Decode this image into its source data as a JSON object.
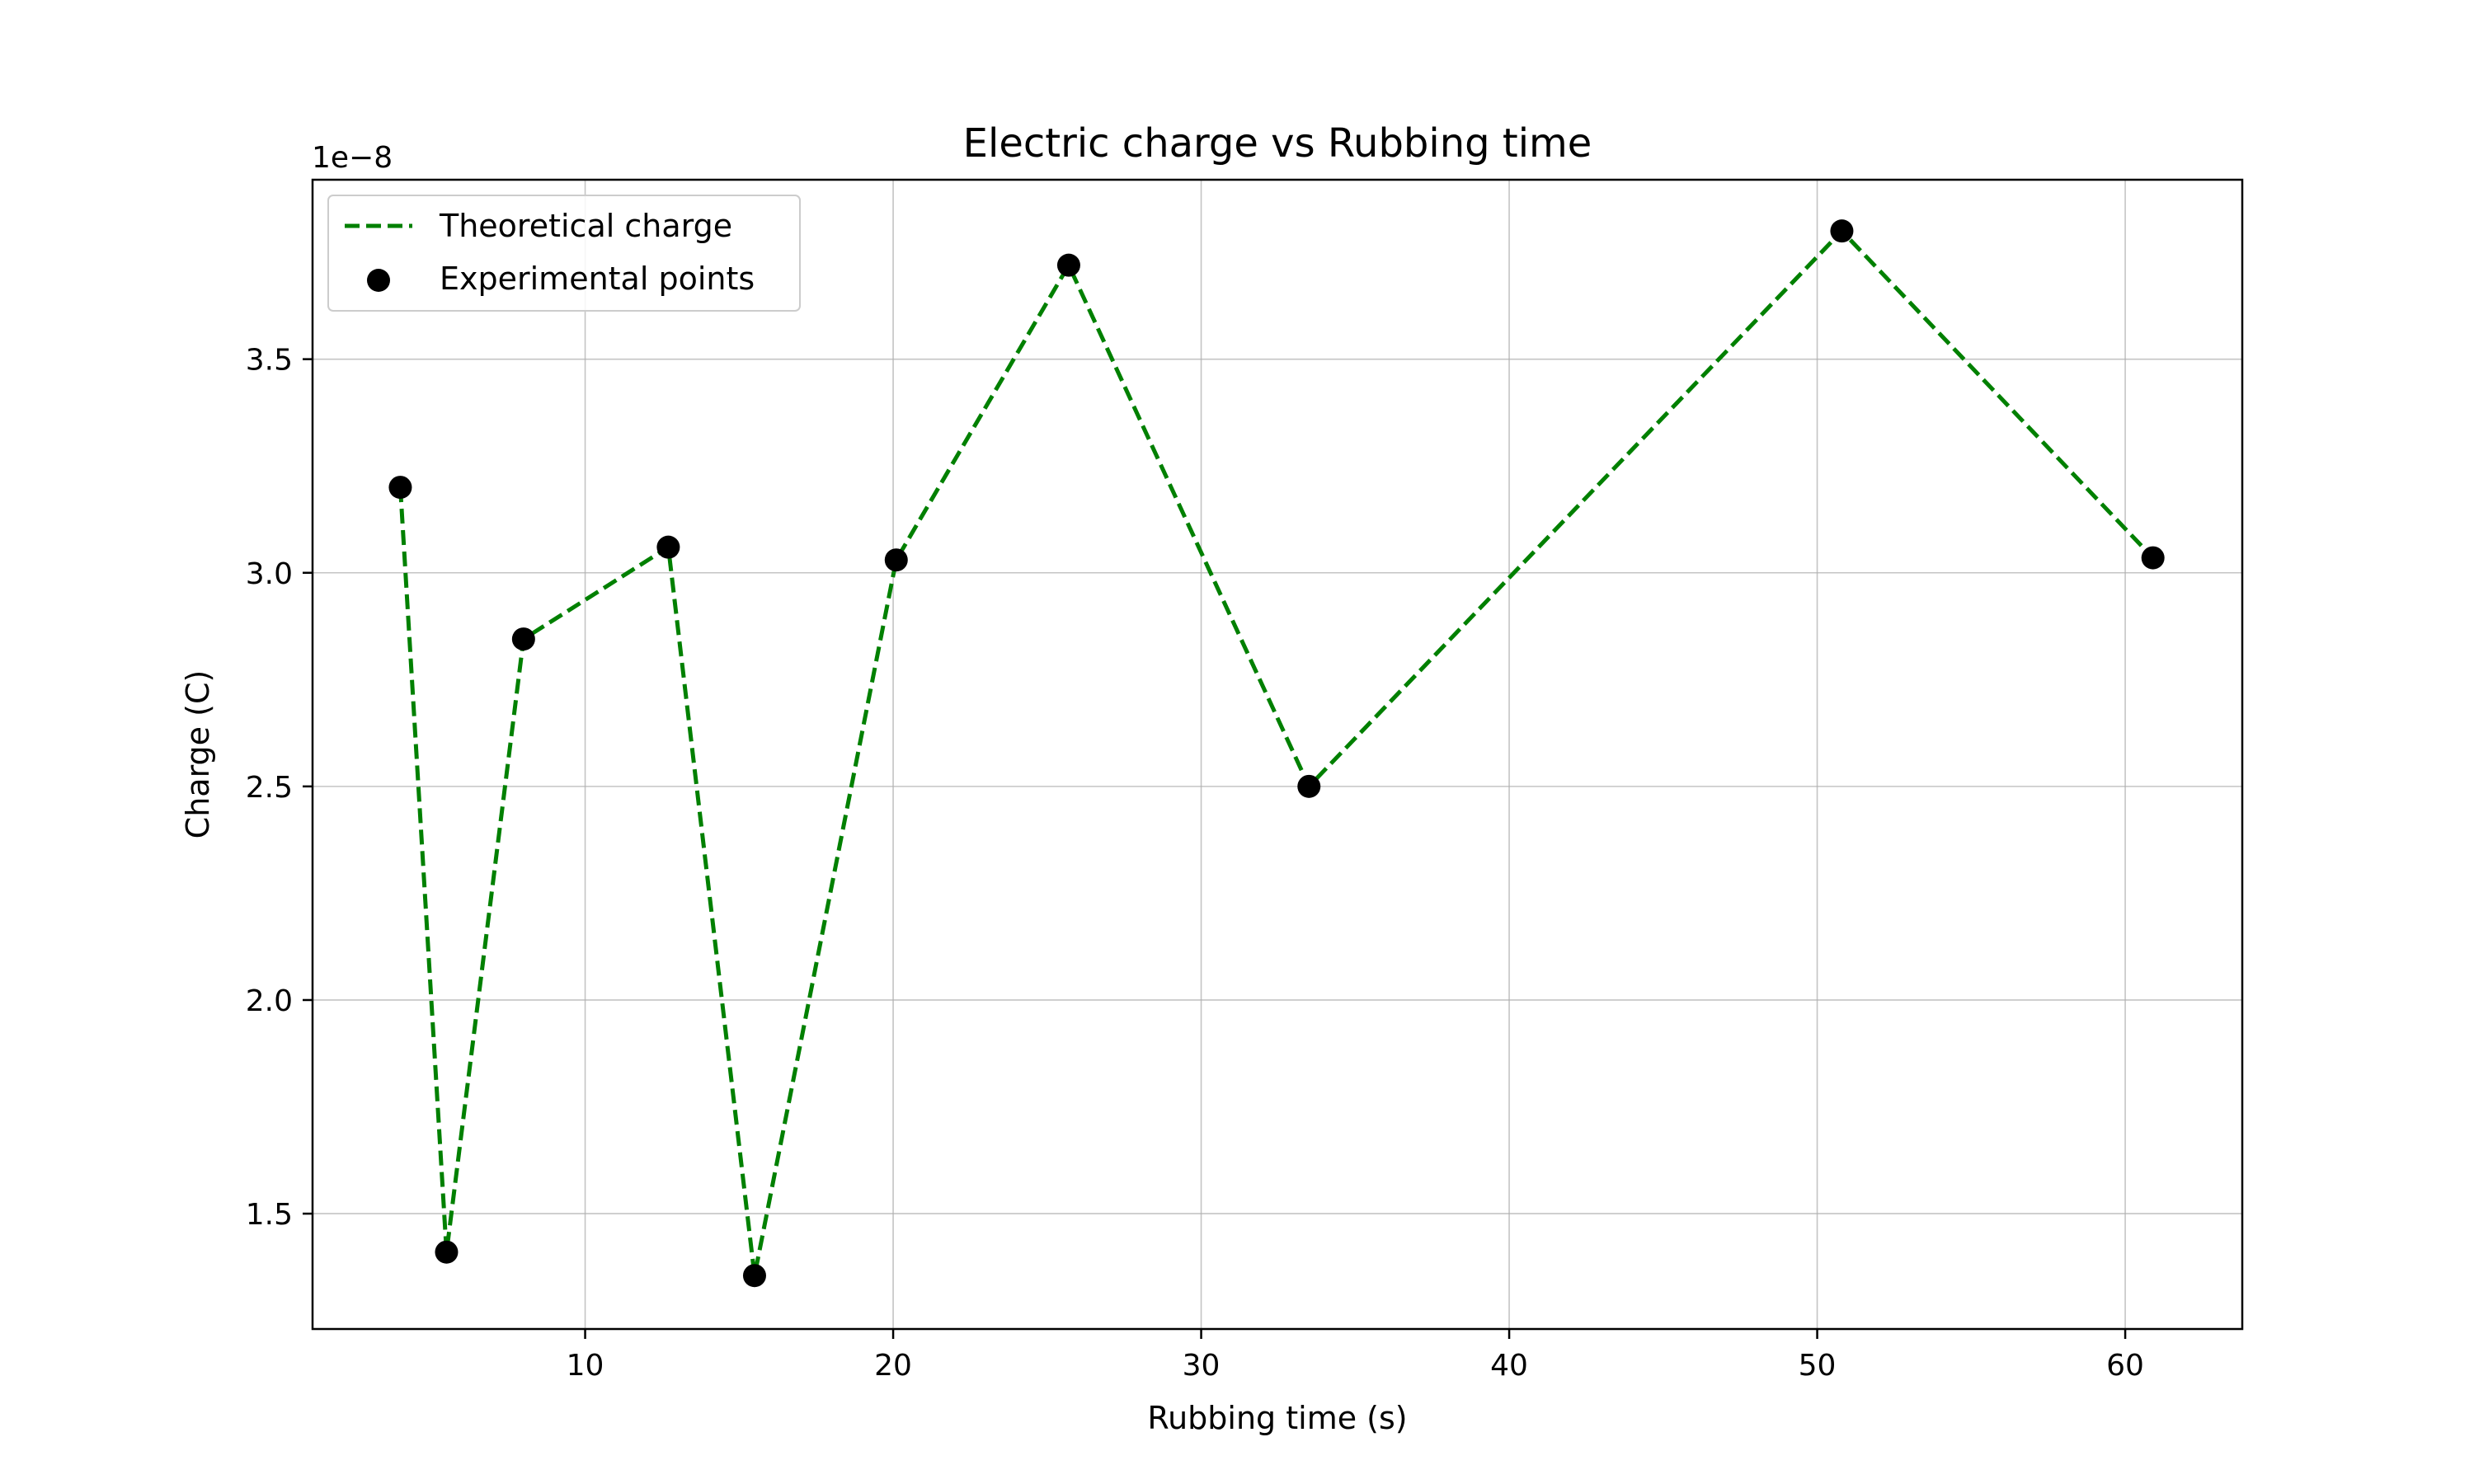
{
  "chart_data": {
    "type": "line",
    "title": "Electric charge vs Rubbing time",
    "xlabel": "Rubbing time (s)",
    "ylabel": "Charge (C)",
    "y_offset_label": "1e−8",
    "y_scale_factor": 1e-08,
    "xlim": [
      1.15,
      63.8
    ],
    "ylim": [
      1.23,
      3.92
    ],
    "xticks": [
      10,
      20,
      30,
      40,
      50,
      60
    ],
    "yticks": [
      1.5,
      2.0,
      2.5,
      3.0,
      3.5
    ],
    "xtick_labels": [
      "10",
      "20",
      "30",
      "40",
      "50",
      "60"
    ],
    "ytick_labels": [
      "1.5",
      "2.0",
      "2.5",
      "3.0",
      "3.5"
    ],
    "grid": true,
    "legend_position": "top-left",
    "series": [
      {
        "name": "Theoretical charge",
        "kind": "line",
        "style": "dashed",
        "color": "#008000",
        "x": [
          4.0,
          5.5,
          8.0,
          12.7,
          15.5,
          20.1,
          25.7,
          33.5,
          50.8,
          60.9
        ],
        "y": [
          3.2,
          1.41,
          2.845,
          3.06,
          1.355,
          3.03,
          3.72,
          2.5,
          3.8,
          3.035
        ]
      },
      {
        "name": "Experimental points",
        "kind": "scatter",
        "color": "#000000",
        "x": [
          4.0,
          5.5,
          8.0,
          12.7,
          15.5,
          20.1,
          25.7,
          33.5,
          50.8,
          60.9
        ],
        "y": [
          3.2,
          1.41,
          2.845,
          3.06,
          1.355,
          3.03,
          3.72,
          2.5,
          3.8,
          3.035
        ]
      }
    ]
  }
}
